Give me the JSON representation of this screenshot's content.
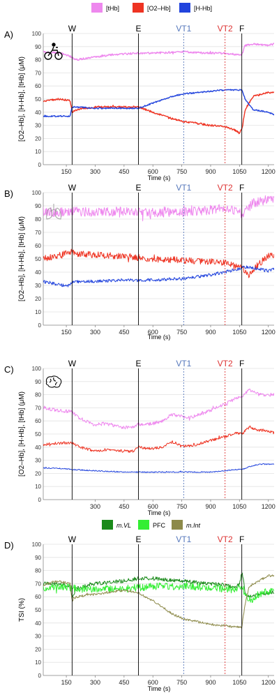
{
  "legend_top": {
    "items": [
      {
        "label": "[tHb]",
        "color": "#ee88ee"
      },
      {
        "label": "[O2–Hb]",
        "color": "#ee3322"
      },
      {
        "label": "[H-Hb]",
        "color": "#2244dd"
      }
    ]
  },
  "legend_bottom": {
    "items": [
      {
        "label": "m.VL",
        "color": "#1a8a1a"
      },
      {
        "label": "PFC",
        "color": "#33ee33"
      },
      {
        "label": "m.Int",
        "color": "#8d8a4a"
      }
    ]
  },
  "colors": {
    "tHb": "#ee88ee",
    "O2Hb": "#ee3322",
    "HHb": "#2244dd",
    "VL": "#1a8a1a",
    "PFC": "#33ee33",
    "Int": "#8d8a4a",
    "vt1": "#5577bb",
    "vt2": "#dd3333"
  },
  "icons": [
    "cyclist-icon",
    "lungs-icon",
    "brain-icon"
  ],
  "chart_data": [
    {
      "panel_label": "A)",
      "type": "line",
      "xlabel": "Time (s)",
      "ylabel": "[O2–Hb], [H-Hb], [tHb] (μM)",
      "xlim": [
        30,
        1230
      ],
      "ylim": [
        0,
        100
      ],
      "xticks": [
        150,
        300,
        450,
        600,
        750,
        900,
        1050,
        1200
      ],
      "yticks": [
        0,
        10,
        20,
        30,
        40,
        50,
        60,
        70,
        80,
        90,
        100
      ],
      "markers": [
        {
          "label": "W",
          "x": 180,
          "style": "solid"
        },
        {
          "label": "E",
          "x": 525,
          "style": "solid"
        },
        {
          "label": "VT1",
          "x": 760,
          "style": "dashed-blue"
        },
        {
          "label": "VT2",
          "x": 975,
          "style": "dashed-red"
        },
        {
          "label": "F",
          "x": 1062,
          "style": "solid"
        }
      ],
      "series": [
        {
          "name": "[tHb]",
          "x": [
            30,
            120,
            180,
            200,
            300,
            400,
            525,
            600,
            760,
            900,
            975,
            1030,
            1062,
            1080,
            1120,
            1200,
            1230
          ],
          "y": [
            86,
            85,
            82,
            80,
            82,
            84,
            85,
            85,
            86,
            85,
            85,
            84,
            84,
            91,
            92,
            91,
            92
          ],
          "noise": 0.7
        },
        {
          "name": "[O2–Hb]",
          "x": [
            30,
            100,
            170,
            180,
            200,
            300,
            400,
            525,
            600,
            700,
            760,
            900,
            975,
            1030,
            1050,
            1062,
            1080,
            1120,
            1200,
            1230
          ],
          "y": [
            48,
            50,
            49,
            40,
            42,
            44,
            44,
            44,
            40,
            35,
            33,
            30,
            29,
            26,
            24,
            27,
            42,
            52,
            55,
            55
          ],
          "noise": 0.7
        },
        {
          "name": "[H-Hb]",
          "x": [
            30,
            100,
            170,
            180,
            200,
            300,
            400,
            525,
            600,
            700,
            760,
            900,
            975,
            1030,
            1062,
            1080,
            1120,
            1200,
            1230
          ],
          "y": [
            37,
            37,
            37,
            44,
            44,
            43,
            43,
            43,
            47,
            52,
            54,
            56,
            57,
            57,
            57,
            50,
            42,
            40,
            38
          ],
          "noise": 0.5
        }
      ]
    },
    {
      "panel_label": "B)",
      "type": "line",
      "xlabel": "Time (s)",
      "ylabel": "[O2–Hb], [H-Hb], [tHb] (μM)",
      "xlim": [
        30,
        1230
      ],
      "ylim": [
        0,
        100
      ],
      "xticks": [
        150,
        300,
        450,
        600,
        750,
        900,
        1050,
        1200
      ],
      "yticks": [
        0,
        10,
        20,
        30,
        40,
        50,
        60,
        70,
        80,
        90,
        100
      ],
      "markers": [
        {
          "label": "W",
          "x": 180,
          "style": "solid"
        },
        {
          "label": "E",
          "x": 525,
          "style": "solid"
        },
        {
          "label": "VT1",
          "x": 760,
          "style": "dashed-blue"
        },
        {
          "label": "VT2",
          "x": 975,
          "style": "dashed-red"
        },
        {
          "label": "F",
          "x": 1062,
          "style": "solid"
        }
      ],
      "series": [
        {
          "name": "[tHb]",
          "x": [
            30,
            100,
            180,
            300,
            450,
            525,
            600,
            750,
            900,
            975,
            1030,
            1062,
            1080,
            1120,
            1200,
            1230
          ],
          "y": [
            86,
            85,
            86,
            85,
            86,
            85,
            85,
            85,
            87,
            88,
            86,
            84,
            86,
            92,
            94,
            94
          ],
          "noise": 3.5
        },
        {
          "name": "[O2–Hb]",
          "x": [
            30,
            100,
            180,
            200,
            300,
            450,
            525,
            600,
            750,
            900,
            975,
            1030,
            1062,
            1080,
            1100,
            1150,
            1200,
            1230
          ],
          "y": [
            50,
            52,
            56,
            54,
            53,
            52,
            51,
            50,
            49,
            48,
            47,
            44,
            44,
            40,
            38,
            46,
            52,
            52
          ],
          "noise": 2.5
        },
        {
          "name": "[H-Hb]",
          "x": [
            30,
            100,
            160,
            180,
            300,
            450,
            525,
            600,
            750,
            900,
            975,
            1030,
            1062,
            1080,
            1120,
            1200,
            1230
          ],
          "y": [
            33,
            31,
            29,
            33,
            33,
            34,
            34,
            34,
            35,
            38,
            40,
            42,
            43,
            44,
            43,
            41,
            43
          ],
          "noise": 1.2
        }
      ]
    },
    {
      "panel_label": "C)",
      "type": "line",
      "xlabel": "Time (s)",
      "ylabel": "[O2–Hb], [H-Hb], [tHb] (μM)",
      "xlim": [
        30,
        1230
      ],
      "ylim": [
        0,
        100
      ],
      "xticks": [
        300,
        450,
        600,
        750,
        900,
        1050,
        1200
      ],
      "yticks": [
        0,
        10,
        20,
        30,
        40,
        50,
        60,
        70,
        80,
        90,
        100
      ],
      "markers": [
        {
          "label": "W",
          "x": 180,
          "style": "solid"
        },
        {
          "label": "E",
          "x": 525,
          "style": "solid"
        },
        {
          "label": "VT1",
          "x": 760,
          "style": "dashed-blue"
        },
        {
          "label": "VT2",
          "x": 975,
          "style": "dashed-red"
        },
        {
          "label": "F",
          "x": 1062,
          "style": "solid"
        }
      ],
      "series": [
        {
          "name": "[tHb]",
          "x": [
            30,
            100,
            180,
            220,
            300,
            350,
            450,
            500,
            525,
            560,
            600,
            650,
            700,
            760,
            800,
            900,
            975,
            1030,
            1062,
            1100,
            1150,
            1200,
            1230
          ],
          "y": [
            70,
            68,
            67,
            62,
            57,
            58,
            55,
            55,
            58,
            57,
            58,
            60,
            65,
            63,
            63,
            68,
            73,
            77,
            78,
            84,
            80,
            80,
            80
          ],
          "noise": 1.3
        },
        {
          "name": "[O2–Hb]",
          "x": [
            30,
            100,
            180,
            220,
            300,
            350,
            450,
            500,
            525,
            560,
            600,
            650,
            700,
            760,
            800,
            900,
            975,
            1030,
            1062,
            1100,
            1150,
            1200,
            1230
          ],
          "y": [
            42,
            43,
            43,
            40,
            37,
            38,
            37,
            37,
            40,
            39,
            39,
            40,
            44,
            41,
            41,
            45,
            48,
            51,
            50,
            55,
            53,
            52,
            51
          ],
          "noise": 1.0
        },
        {
          "name": "[H-Hb]",
          "x": [
            30,
            100,
            180,
            300,
            450,
            525,
            600,
            750,
            900,
            975,
            1030,
            1062,
            1100,
            1150,
            1200,
            1230
          ],
          "y": [
            24,
            24,
            23,
            22,
            21,
            21,
            21,
            21,
            21,
            22,
            23,
            23,
            25,
            27,
            27,
            27
          ],
          "noise": 0.4
        }
      ]
    },
    {
      "panel_label": "D)",
      "type": "line",
      "xlabel": "Time (s)",
      "ylabel": "TSI (%)",
      "xlim": [
        30,
        1230
      ],
      "ylim": [
        0,
        100
      ],
      "xticks": [
        150,
        300,
        450,
        600,
        750,
        900,
        1050,
        1200
      ],
      "yticks": [
        0,
        10,
        20,
        30,
        40,
        50,
        60,
        70,
        80,
        90,
        100
      ],
      "markers": [
        {
          "label": "W",
          "x": 180,
          "style": "solid"
        },
        {
          "label": "E",
          "x": 525,
          "style": "solid"
        },
        {
          "label": "VT1",
          "x": 760,
          "style": "dashed-blue"
        },
        {
          "label": "VT2",
          "x": 975,
          "style": "dashed-red"
        },
        {
          "label": "F",
          "x": 1062,
          "style": "solid"
        }
      ],
      "series": [
        {
          "name": "m.VL",
          "x": [
            30,
            100,
            170,
            180,
            200,
            300,
            450,
            525,
            600,
            750,
            900,
            975,
            1030,
            1050,
            1062,
            1070,
            1080,
            1100,
            1150,
            1200,
            1230
          ],
          "y": [
            70,
            70,
            68,
            60,
            66,
            70,
            72,
            74,
            74,
            72,
            70,
            69,
            67,
            70,
            78,
            74,
            62,
            60,
            62,
            63,
            64
          ],
          "noise": 1.5
        },
        {
          "name": "PFC",
          "x": [
            30,
            100,
            180,
            200,
            300,
            450,
            525,
            600,
            750,
            900,
            975,
            1030,
            1062,
            1080,
            1100,
            1150,
            1200,
            1230
          ],
          "y": [
            67,
            68,
            67,
            66,
            66,
            66,
            67,
            68,
            68,
            67,
            66,
            65,
            68,
            62,
            55,
            62,
            64,
            64
          ],
          "noise": 2.8
        },
        {
          "name": "m.Int",
          "x": [
            30,
            100,
            170,
            180,
            200,
            300,
            450,
            525,
            600,
            700,
            760,
            900,
            975,
            1030,
            1062,
            1080,
            1100,
            1150,
            1200,
            1230
          ],
          "y": [
            69,
            72,
            70,
            57,
            60,
            62,
            65,
            63,
            57,
            47,
            43,
            39,
            38,
            37,
            37,
            55,
            68,
            72,
            76,
            76
          ],
          "noise": 0.9
        }
      ]
    }
  ]
}
